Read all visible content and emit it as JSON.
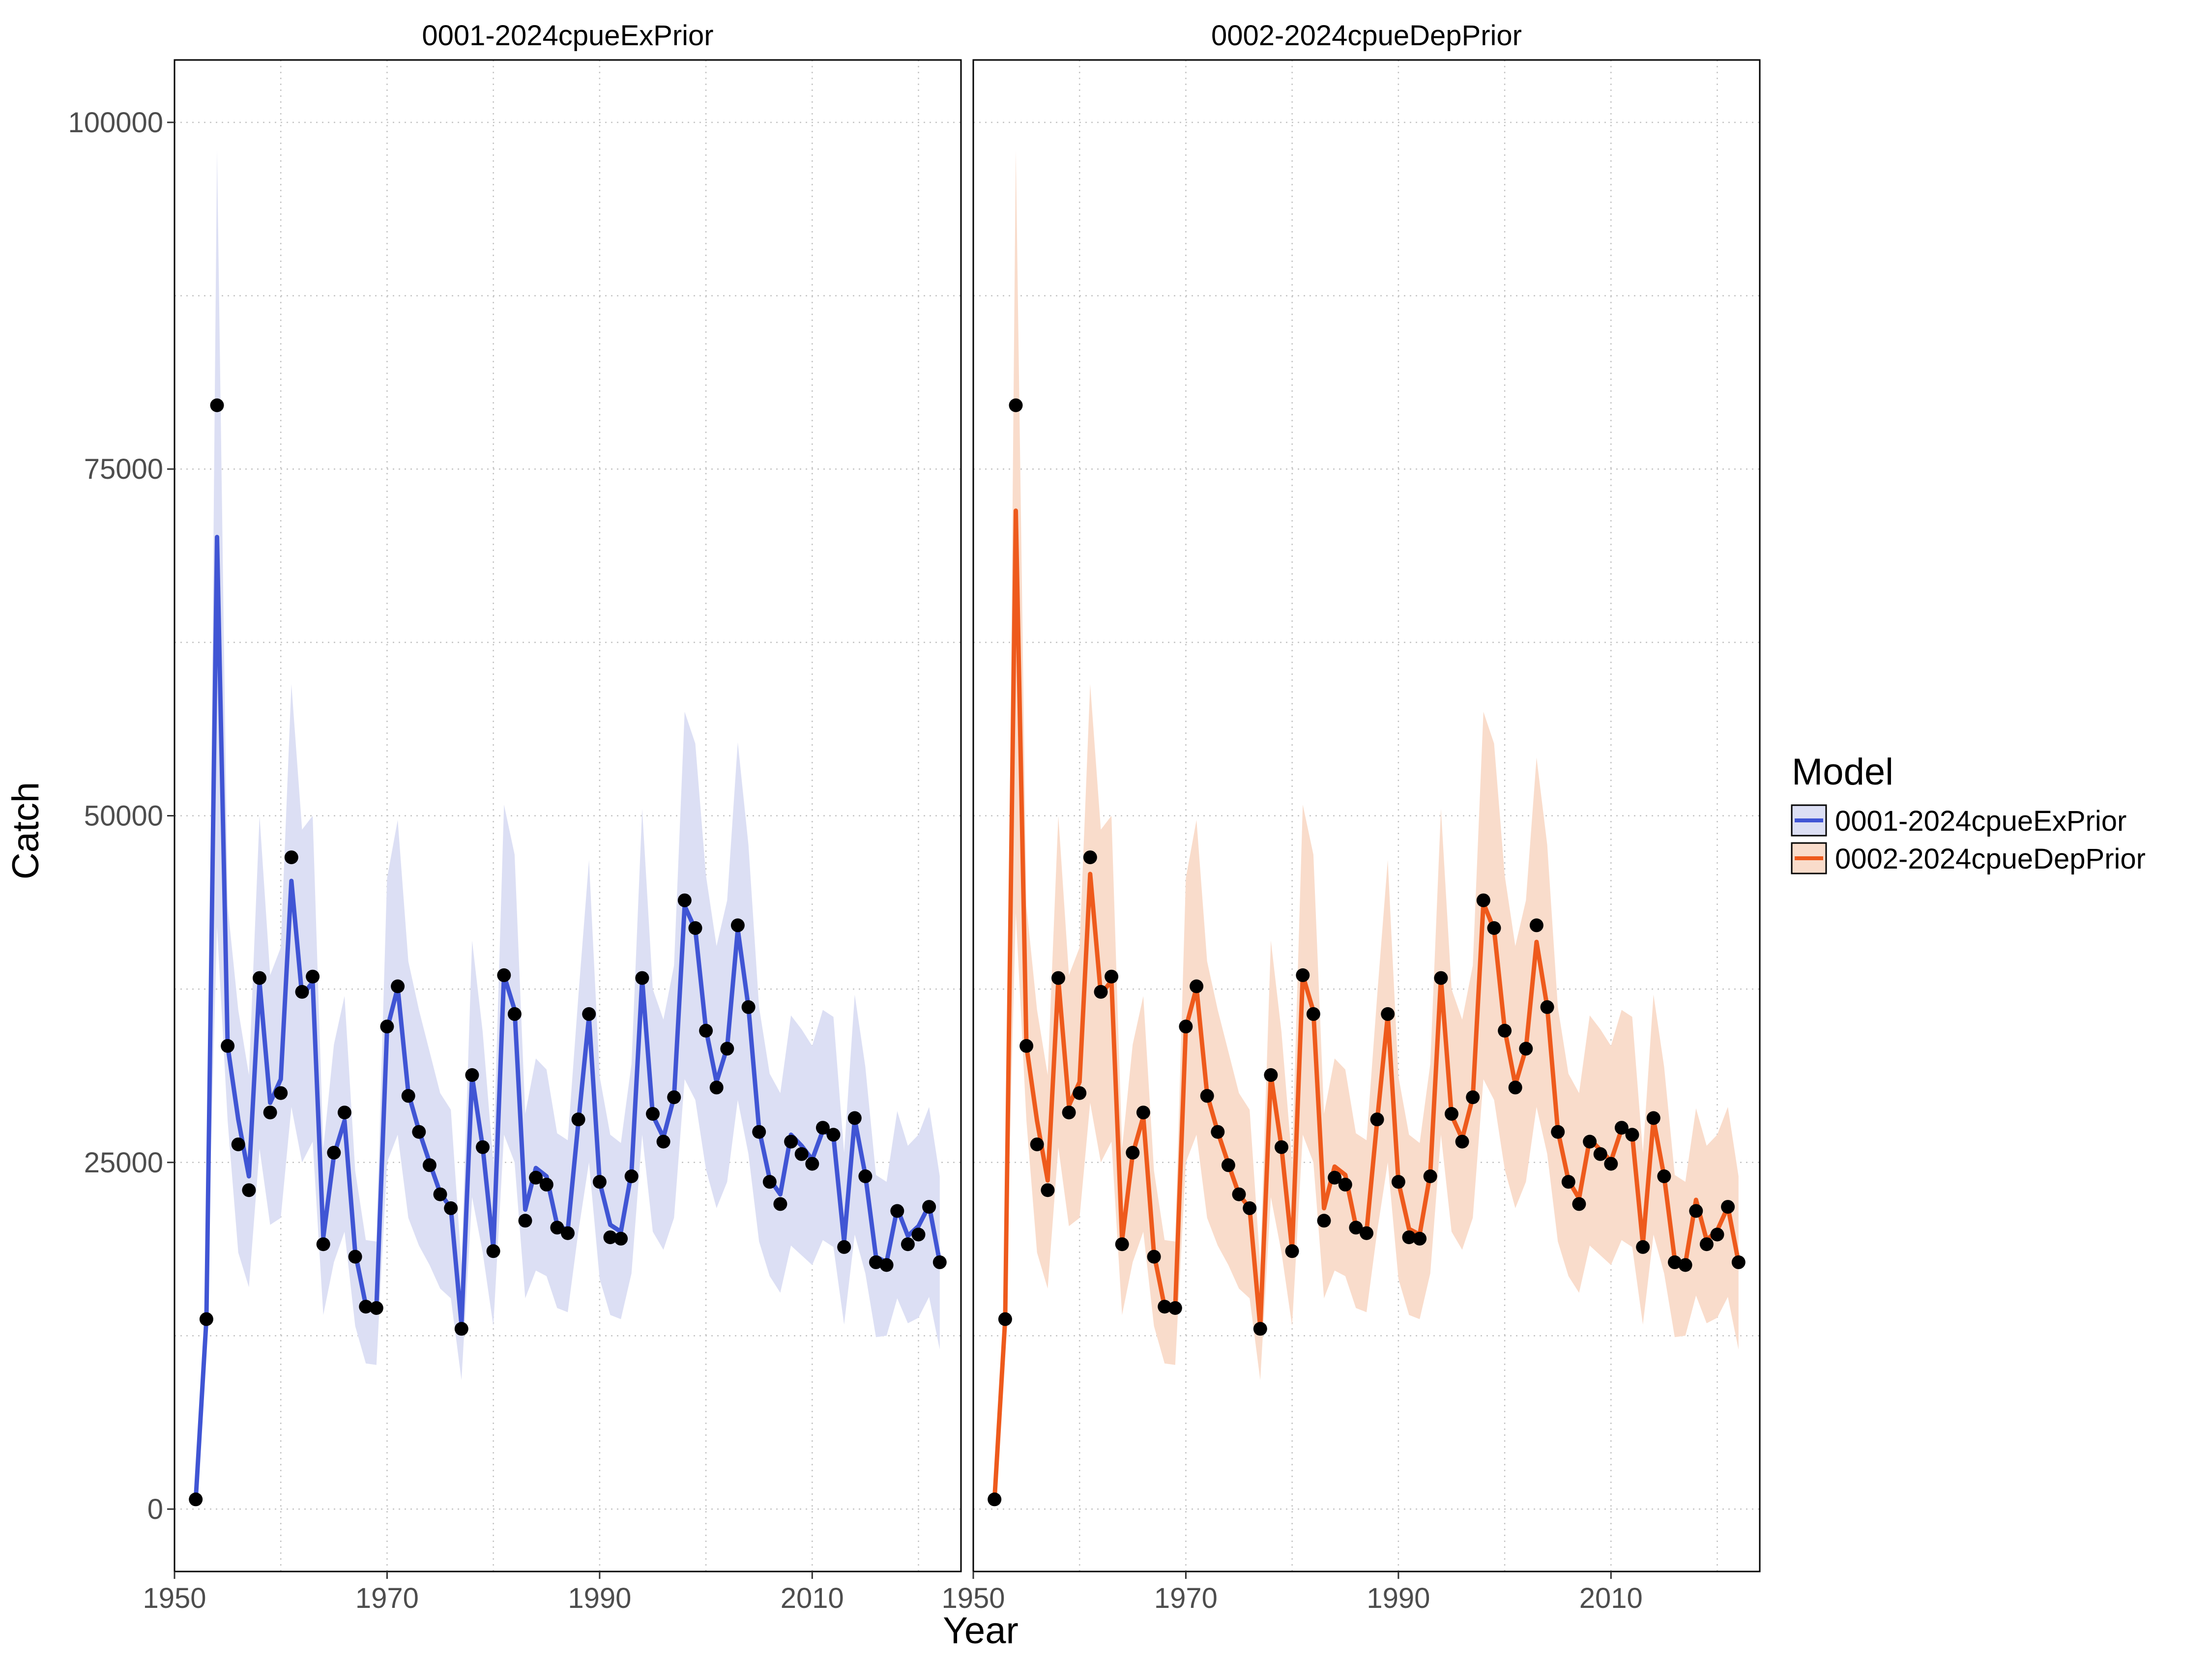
{
  "chart_data": [
    {
      "type": "line",
      "panel_title": "0001-2024cpueExPrior",
      "xlabel": "Year",
      "ylabel": "Catch",
      "xlim": [
        1950,
        2024
      ],
      "ylim": [
        -4500,
        104500
      ],
      "xticks": [
        1950,
        1970,
        1990,
        2010
      ],
      "yticks": [
        0,
        25000,
        50000,
        75000,
        100000
      ],
      "grid": true,
      "color": "#4055D4",
      "ribbon_color": "#DCDFF4",
      "x": [
        1952,
        1953,
        1954,
        1955,
        1956,
        1957,
        1958,
        1959,
        1960,
        1961,
        1962,
        1963,
        1964,
        1965,
        1966,
        1967,
        1968,
        1969,
        1970,
        1971,
        1972,
        1973,
        1974,
        1975,
        1976,
        1977,
        1978,
        1979,
        1980,
        1981,
        1982,
        1983,
        1984,
        1985,
        1986,
        1987,
        1988,
        1989,
        1990,
        1991,
        1992,
        1993,
        1994,
        1995,
        1996,
        1997,
        1998,
        1999,
        2000,
        2001,
        2002,
        2003,
        2004,
        2005,
        2006,
        2007,
        2008,
        2009,
        2010,
        2011,
        2012,
        2013,
        2014,
        2015,
        2016,
        2017,
        2018,
        2019,
        2020,
        2021,
        2022
      ],
      "observed": [
        700,
        13700,
        79600,
        33400,
        26300,
        23000,
        38300,
        28600,
        30000,
        47000,
        37300,
        38400,
        19100,
        25700,
        28600,
        18200,
        14600,
        14500,
        34800,
        37700,
        29800,
        27200,
        24800,
        22700,
        21700,
        13000,
        31300,
        26100,
        18600,
        38500,
        35700,
        20800,
        23900,
        23400,
        20300,
        19900,
        28100,
        35700,
        23600,
        19600,
        19500,
        24000,
        38300,
        28500,
        26500,
        29700,
        43900,
        41900,
        34500,
        30400,
        33200,
        42100,
        36200,
        27200,
        23600,
        22000,
        26500,
        25600,
        24900,
        27500,
        27000,
        18900,
        28200,
        24000,
        17800,
        17600,
        21500,
        19100,
        19800,
        21800,
        17800
      ],
      "predicted": [
        700,
        13700,
        70100,
        33400,
        28100,
        24000,
        38000,
        29300,
        31000,
        45300,
        37000,
        38000,
        19600,
        25500,
        28000,
        18500,
        14700,
        14600,
        34600,
        37600,
        30000,
        27300,
        25000,
        22800,
        21700,
        13300,
        31200,
        26100,
        18800,
        38500,
        36000,
        21600,
        24600,
        24000,
        20500,
        20100,
        27900,
        35500,
        23600,
        20500,
        20000,
        24300,
        38200,
        28400,
        26800,
        29700,
        43500,
        41800,
        34600,
        30800,
        33300,
        41800,
        36200,
        27400,
        23800,
        22700,
        27000,
        26200,
        25200,
        27300,
        26900,
        19300,
        28100,
        24100,
        18200,
        17800,
        21700,
        19700,
        20400,
        21900,
        17800
      ],
      "lower": [
        700,
        13700,
        42000,
        28000,
        18500,
        16000,
        26000,
        20500,
        21000,
        29000,
        25000,
        26500,
        14000,
        17800,
        20000,
        13200,
        10500,
        10400,
        25000,
        27000,
        21000,
        19000,
        17600,
        15900,
        15200,
        9300,
        22500,
        18500,
        13200,
        27000,
        25000,
        15200,
        17200,
        16800,
        14500,
        14200,
        20000,
        25000,
        16600,
        14000,
        13700,
        17000,
        27000,
        20000,
        18700,
        21000,
        31000,
        29500,
        24500,
        21700,
        23600,
        29500,
        25600,
        19300,
        16800,
        15600,
        19000,
        18300,
        17600,
        19400,
        18900,
        13300,
        19800,
        17000,
        12400,
        12500,
        15200,
        13400,
        13800,
        15300,
        11500
      ],
      "upper": [
        700,
        13700,
        98000,
        43500,
        36000,
        31300,
        50000,
        38500,
        40500,
        59500,
        49000,
        50000,
        26000,
        33500,
        37000,
        24400,
        19400,
        19300,
        45500,
        49700,
        39500,
        36000,
        33000,
        30000,
        28800,
        17600,
        41000,
        34400,
        25000,
        50800,
        47200,
        28500,
        32500,
        31700,
        27100,
        26600,
        37000,
        46800,
        31200,
        27000,
        26400,
        32100,
        50500,
        37500,
        35300,
        39200,
        57500,
        55200,
        45700,
        40600,
        43900,
        55300,
        47900,
        36200,
        31400,
        30000,
        35600,
        34600,
        33400,
        36000,
        35500,
        25700,
        37100,
        31900,
        24100,
        23600,
        28700,
        26200,
        27000,
        29000,
        24000
      ]
    },
    {
      "type": "line",
      "panel_title": "0002-2024cpueDepPrior",
      "xlabel": "Year",
      "ylabel": "Catch",
      "xlim": [
        1950,
        2024
      ],
      "ylim": [
        -4500,
        104500
      ],
      "xticks": [
        1950,
        1970,
        1990,
        2010
      ],
      "yticks": [
        0,
        25000,
        50000,
        75000,
        100000
      ],
      "grid": true,
      "color": "#EE5A1C",
      "ribbon_color": "#F9DCCB",
      "x": [
        1952,
        1953,
        1954,
        1955,
        1956,
        1957,
        1958,
        1959,
        1960,
        1961,
        1962,
        1963,
        1964,
        1965,
        1966,
        1967,
        1968,
        1969,
        1970,
        1971,
        1972,
        1973,
        1974,
        1975,
        1976,
        1977,
        1978,
        1979,
        1980,
        1981,
        1982,
        1983,
        1984,
        1985,
        1986,
        1987,
        1988,
        1989,
        1990,
        1991,
        1992,
        1993,
        1994,
        1995,
        1996,
        1997,
        1998,
        1999,
        2000,
        2001,
        2002,
        2003,
        2004,
        2005,
        2006,
        2007,
        2008,
        2009,
        2010,
        2011,
        2012,
        2013,
        2014,
        2015,
        2016,
        2017,
        2018,
        2019,
        2020,
        2021,
        2022
      ],
      "observed": [
        700,
        13700,
        79600,
        33400,
        26300,
        23000,
        38300,
        28600,
        30000,
        47000,
        37300,
        38400,
        19100,
        25700,
        28600,
        18200,
        14600,
        14500,
        34800,
        37700,
        29800,
        27200,
        24800,
        22700,
        21700,
        13000,
        31300,
        26100,
        18600,
        38500,
        35700,
        20800,
        23900,
        23400,
        20300,
        19900,
        28100,
        35700,
        23600,
        19600,
        19500,
        24000,
        38300,
        28500,
        26500,
        29700,
        43900,
        41900,
        34500,
        30400,
        33200,
        42100,
        36200,
        27200,
        23600,
        22000,
        26500,
        25600,
        24900,
        27500,
        27000,
        18900,
        28200,
        24000,
        17800,
        17600,
        21500,
        19100,
        19800,
        21800,
        17800
      ],
      "predicted": [
        700,
        13700,
        72000,
        33400,
        28000,
        23700,
        38200,
        29100,
        30800,
        45800,
        37100,
        38100,
        19400,
        25600,
        28300,
        18400,
        14600,
        14500,
        34700,
        37600,
        29900,
        27200,
        24900,
        22700,
        21700,
        13100,
        31300,
        26100,
        18700,
        38500,
        35900,
        21700,
        24700,
        24100,
        20400,
        20000,
        28000,
        35600,
        23600,
        20200,
        19800,
        24200,
        38300,
        28400,
        26700,
        29700,
        43700,
        41800,
        34600,
        30600,
        33200,
        40900,
        36200,
        27300,
        23700,
        22400,
        26700,
        25900,
        25100,
        27400,
        27000,
        19100,
        28100,
        24000,
        18000,
        17700,
        22300,
        19400,
        20100,
        21800,
        17800
      ],
      "lower": [
        700,
        13700,
        43000,
        28000,
        18500,
        15900,
        26100,
        20400,
        21000,
        29300,
        25000,
        26500,
        14000,
        17800,
        20000,
        13200,
        10500,
        10400,
        25000,
        27000,
        21000,
        19000,
        17600,
        15900,
        15200,
        9300,
        22500,
        18500,
        13200,
        27000,
        25000,
        15200,
        17200,
        16800,
        14500,
        14200,
        20000,
        25000,
        16600,
        14000,
        13700,
        17000,
        27000,
        20000,
        18700,
        21000,
        31000,
        29500,
        24500,
        21700,
        23600,
        29000,
        25600,
        19300,
        16800,
        15600,
        19000,
        18300,
        17600,
        19400,
        18900,
        13300,
        19800,
        17000,
        12400,
        12500,
        15400,
        13400,
        13800,
        15300,
        11500
      ],
      "upper": [
        700,
        13700,
        98000,
        43500,
        36000,
        31300,
        50000,
        38500,
        40500,
        59500,
        49000,
        50000,
        26000,
        33500,
        37000,
        24400,
        19400,
        19300,
        45500,
        49700,
        39500,
        36000,
        33000,
        30000,
        28800,
        17600,
        41000,
        34400,
        25000,
        50800,
        47200,
        28500,
        32500,
        31700,
        27100,
        26600,
        37000,
        46800,
        31200,
        27000,
        26400,
        32100,
        50500,
        37500,
        35300,
        39200,
        57500,
        55200,
        45700,
        40600,
        43900,
        54200,
        47900,
        36200,
        31400,
        30000,
        35600,
        34600,
        33400,
        36000,
        35500,
        25700,
        37100,
        31900,
        24100,
        23600,
        28900,
        26200,
        27000,
        29000,
        24000
      ]
    }
  ],
  "legend": {
    "title": "Model",
    "placement": "right",
    "items": [
      {
        "label": "0001-2024cpueExPrior",
        "color": "#4055D4",
        "fill": "#DCDFF4"
      },
      {
        "label": "0002-2024cpueDepPrior",
        "color": "#EE5A1C",
        "fill": "#F9DCCB"
      }
    ]
  },
  "axes": {
    "xlabel": "Year",
    "ylabel": "Catch",
    "ytick_labels": [
      "0",
      "25000",
      "50000",
      "75000",
      "100000"
    ],
    "xtick_labels": [
      "1950",
      "1970",
      "1990",
      "2010"
    ]
  },
  "strips": [
    "0001-2024cpueExPrior",
    "0002-2024cpueDepPrior"
  ]
}
